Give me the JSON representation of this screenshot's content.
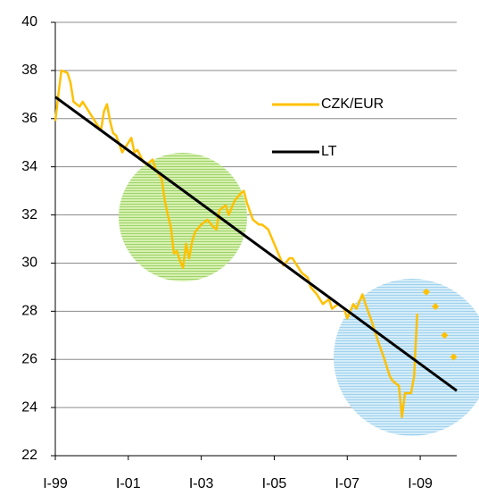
{
  "chart_data": {
    "type": "line",
    "xlim": [
      0,
      132
    ],
    "xticks": [
      {
        "value": 0,
        "label": "I-99"
      },
      {
        "value": 24,
        "label": "I-01"
      },
      {
        "value": 48,
        "label": "I-03"
      },
      {
        "value": 72,
        "label": "I-05"
      },
      {
        "value": 96,
        "label": "I-07"
      },
      {
        "value": 120,
        "label": "I-09"
      }
    ],
    "ylim": [
      22,
      40
    ],
    "yticks": [
      22,
      24,
      26,
      28,
      30,
      32,
      34,
      36,
      38,
      40
    ],
    "grid": true,
    "series": [
      {
        "name": "CZK/EUR",
        "color": "#ffc000",
        "x": [
          0,
          1,
          2,
          4,
          5,
          6,
          8,
          9,
          11,
          13,
          15,
          16,
          17,
          18,
          19,
          20,
          22,
          23,
          25,
          26,
          27,
          29,
          30,
          32,
          33,
          35,
          36,
          37,
          38,
          39,
          40,
          41,
          42,
          43,
          44,
          45,
          46,
          48,
          50,
          52,
          53,
          54,
          56,
          57,
          59,
          61,
          62,
          63,
          65,
          67,
          68,
          70,
          71,
          73,
          74,
          75,
          77,
          78,
          80,
          81,
          83,
          84,
          86,
          88,
          90,
          91,
          93,
          95,
          96,
          98,
          99,
          101,
          102,
          104,
          106,
          108,
          110,
          111,
          113,
          114,
          115,
          117,
          118,
          119
        ],
        "values": [
          35.9,
          37.0,
          38.0,
          37.9,
          37.5,
          36.7,
          36.5,
          36.7,
          36.3,
          35.9,
          35.5,
          36.3,
          36.6,
          35.9,
          35.4,
          35.3,
          34.6,
          34.8,
          35.2,
          34.6,
          34.7,
          34.2,
          34.1,
          34.3,
          33.9,
          33.5,
          32.6,
          32.0,
          31.5,
          30.4,
          30.5,
          30.1,
          29.8,
          30.8,
          30.2,
          30.9,
          31.3,
          31.6,
          31.8,
          31.5,
          31.4,
          32.2,
          32.4,
          32.0,
          32.6,
          32.9,
          33.0,
          32.5,
          31.8,
          31.6,
          31.6,
          31.4,
          31.1,
          30.5,
          30.2,
          29.9,
          30.2,
          30.2,
          29.8,
          29.6,
          29.4,
          29.0,
          28.7,
          28.3,
          28.5,
          28.1,
          28.3,
          28.1,
          27.7,
          28.3,
          28.1,
          28.7,
          28.3,
          27.6,
          26.8,
          26.1,
          25.3,
          25.1,
          24.9,
          23.6,
          24.6,
          24.6,
          25.3,
          27.9
        ]
      },
      {
        "name": "LT",
        "color": "#000000",
        "x": [
          0,
          132
        ],
        "values": [
          36.9,
          24.7
        ]
      },
      {
        "color": "#ffc000",
        "marker": "diamond",
        "x": [
          122,
          125,
          128,
          131
        ],
        "values": [
          28.8,
          28.2,
          27.0,
          26.1
        ]
      }
    ]
  }
}
